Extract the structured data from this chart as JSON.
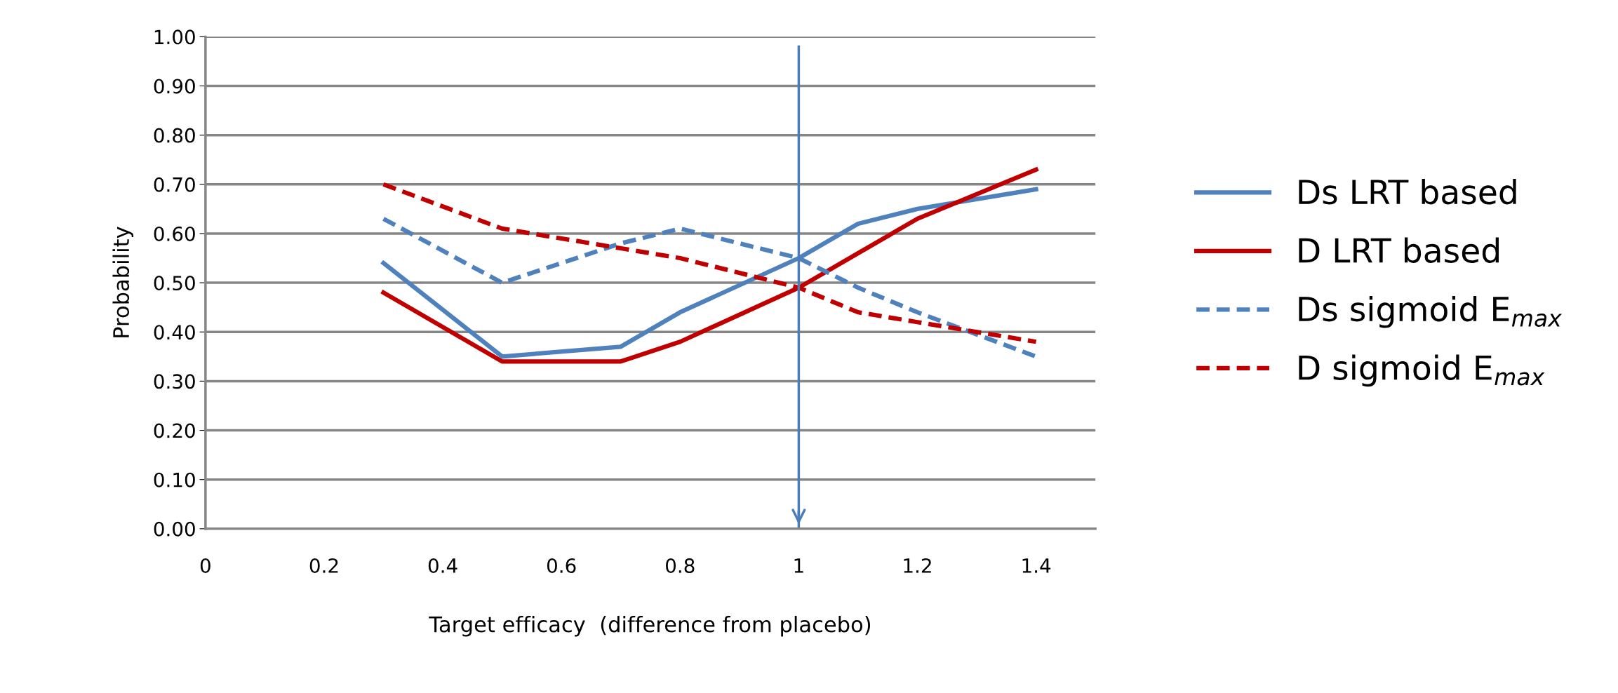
{
  "chart_data": {
    "type": "line",
    "xlabel": "Target efficacy  (difference from placebo)",
    "ylabel": "Probability",
    "xlim": [
      0,
      1.5
    ],
    "xticks": [
      0,
      0.2,
      0.4,
      0.6,
      0.8,
      1,
      1.2,
      1.4
    ],
    "ylim": [
      0,
      1
    ],
    "yticks": [
      {
        "value": 0,
        "label": "0.00"
      },
      {
        "value": 0.1,
        "label": "0.10"
      },
      {
        "value": 0.2,
        "label": "0.20"
      },
      {
        "value": 0.3,
        "label": "0.30"
      },
      {
        "value": 0.4,
        "label": "0.40"
      },
      {
        "value": 0.5,
        "label": "0.50"
      },
      {
        "value": 0.6,
        "label": "0.60"
      },
      {
        "value": 0.7,
        "label": "0.70"
      },
      {
        "value": 0.8,
        "label": "0.80"
      },
      {
        "value": 0.9,
        "label": "0.90"
      },
      {
        "value": 1,
        "label": "1.00"
      }
    ],
    "x": [
      0.3,
      0.5,
      0.7,
      0.8,
      1.0,
      1.1,
      1.2,
      1.4
    ],
    "series": [
      {
        "name": "Ds LRT based",
        "color": "#4f81bd",
        "line_style": "solid",
        "values": [
          0.54,
          0.35,
          0.37,
          0.44,
          0.55,
          0.62,
          0.65,
          0.69
        ]
      },
      {
        "name": "D LRT based",
        "color": "#c00000",
        "line_style": "solid",
        "values": [
          0.48,
          0.34,
          0.34,
          0.38,
          0.49,
          0.56,
          0.63,
          0.73
        ]
      },
      {
        "name": "Ds sigmoid E$_{max}$",
        "color": "#4f81bd",
        "line_style": "dashed",
        "values": [
          0.63,
          0.5,
          0.58,
          0.61,
          0.55,
          0.49,
          0.44,
          0.35
        ]
      },
      {
        "name": "D sigmoid E$_{max}$",
        "color": "#c00000",
        "line_style": "dashed",
        "values": [
          0.7,
          0.61,
          0.57,
          0.55,
          0.49,
          0.44,
          0.42,
          0.38
        ]
      }
    ],
    "ref_lines": [
      {
        "axis": "x",
        "value": 1,
        "color": "#4a7ebb"
      }
    ],
    "grid": "y",
    "legend": "right",
    "marker": "none"
  }
}
